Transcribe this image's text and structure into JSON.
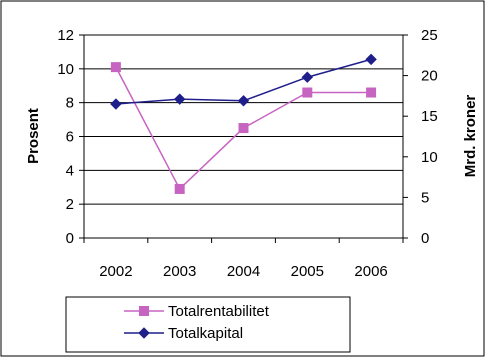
{
  "chart_data": {
    "type": "line",
    "categories": [
      "2002",
      "2003",
      "2004",
      "2005",
      "2006"
    ],
    "y_left": {
      "label": "Prosent",
      "ticks": [
        "0",
        "2",
        "4",
        "6",
        "8",
        "10",
        "12"
      ],
      "range": [
        0,
        12
      ]
    },
    "y_right": {
      "label": "Mrd. kroner",
      "ticks": [
        "0",
        "5",
        "10",
        "15",
        "20",
        "25"
      ],
      "range": [
        0,
        25
      ]
    },
    "series": [
      {
        "name": "Totalrentabilitet",
        "axis": "left",
        "color": "#c764c2",
        "marker": "square",
        "values": [
          10.1,
          2.9,
          6.5,
          8.6,
          8.6
        ]
      },
      {
        "name": "Totalkapital",
        "axis": "right",
        "color": "#1f1f8c",
        "marker": "diamond",
        "values": [
          16.5,
          17.1,
          16.9,
          19.8,
          22.0
        ]
      }
    ],
    "grid": true,
    "legend": "bottom"
  }
}
